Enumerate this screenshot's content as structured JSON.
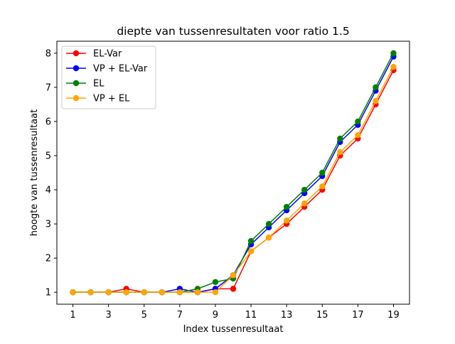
{
  "chart_data": {
    "type": "line",
    "title": "diepte van tussenresultaten voor ratio 1.5",
    "xlabel": "Index tussenresultaat",
    "ylabel": "hoogte van tussenresultaat",
    "x": [
      1,
      2,
      3,
      4,
      5,
      6,
      7,
      8,
      9,
      10,
      11,
      12,
      13,
      14,
      15,
      16,
      17,
      18,
      19
    ],
    "xticks": [
      1,
      3,
      5,
      7,
      9,
      11,
      13,
      15,
      17,
      19
    ],
    "yticks": [
      1,
      2,
      3,
      4,
      5,
      6,
      7,
      8
    ],
    "xlim": [
      0.1,
      19.9
    ],
    "ylim": [
      0.65,
      8.35
    ],
    "grid": false,
    "legend_position": "top-left",
    "series": [
      {
        "name": "EL-Var",
        "color": "#ff0000",
        "values": [
          1,
          1,
          1,
          1.1,
          1,
          1,
          1,
          1,
          1.1,
          1.1,
          2.2,
          2.6,
          3.0,
          3.5,
          4.0,
          5.0,
          5.5,
          6.5,
          7.5
        ]
      },
      {
        "name": "VP + EL-Var",
        "color": "#0000ff",
        "values": [
          1,
          1,
          1,
          1,
          1,
          1,
          1.1,
          1,
          1.1,
          1.5,
          2.4,
          2.9,
          3.4,
          3.9,
          4.4,
          5.4,
          5.9,
          6.9,
          7.9
        ]
      },
      {
        "name": "EL",
        "color": "#008000",
        "values": [
          1,
          1,
          1,
          1,
          1,
          1,
          1,
          1.1,
          1.3,
          1.4,
          2.5,
          3.0,
          3.5,
          4.0,
          4.5,
          5.5,
          6.0,
          7.0,
          8.0
        ]
      },
      {
        "name": "VP + EL",
        "color": "#ffa500",
        "values": [
          1,
          1,
          1,
          1,
          1,
          1,
          1,
          1,
          1,
          1.5,
          2.2,
          2.6,
          3.1,
          3.6,
          4.1,
          5.1,
          5.6,
          6.6,
          7.6
        ]
      }
    ]
  }
}
